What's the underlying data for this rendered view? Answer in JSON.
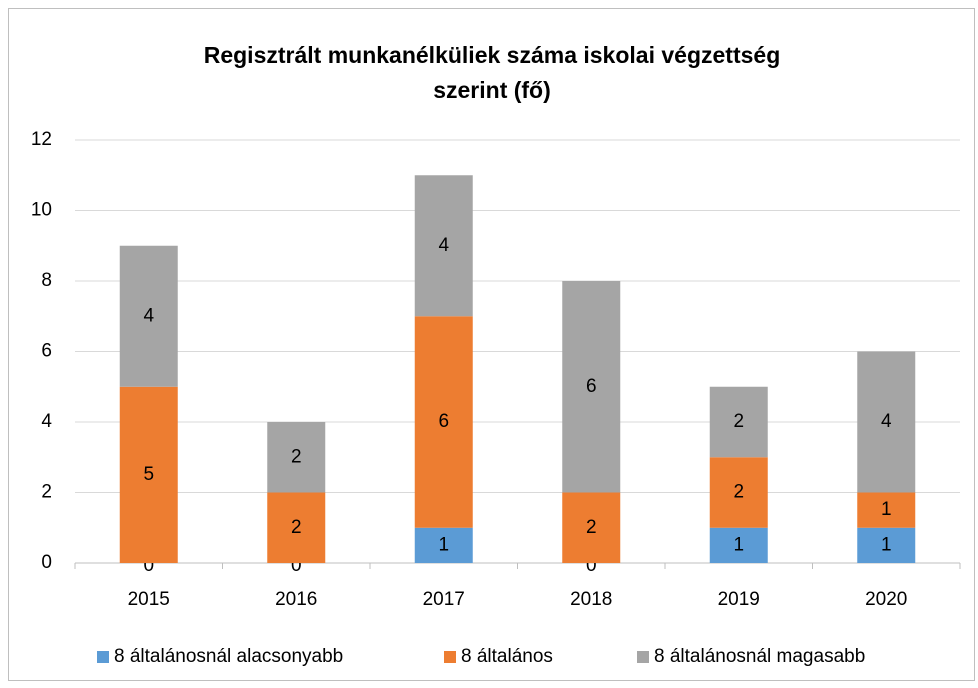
{
  "chart_data": {
    "type": "stacked_bar",
    "title": [
      "Regisztrált munkanélküliek száma iskolai végzettség",
      "szerint (fő)"
    ],
    "categories": [
      "2015",
      "2016",
      "2017",
      "2018",
      "2019",
      "2020"
    ],
    "series": [
      {
        "name": "8 általánosnál alacsonyabb",
        "color": "#5b9bd5",
        "values": [
          0,
          0,
          1,
          0,
          1,
          1
        ]
      },
      {
        "name": "8 általános",
        "color": "#ed7d31",
        "values": [
          5,
          2,
          6,
          2,
          2,
          1
        ]
      },
      {
        "name": "8 általánosnál magasabb",
        "color": "#a5a5a5",
        "values": [
          4,
          2,
          4,
          6,
          2,
          4
        ]
      }
    ],
    "ylim": [
      0,
      12
    ],
    "yticks": [
      0,
      2,
      4,
      6,
      8,
      10,
      12
    ],
    "grid": true,
    "legend": "bottom"
  }
}
